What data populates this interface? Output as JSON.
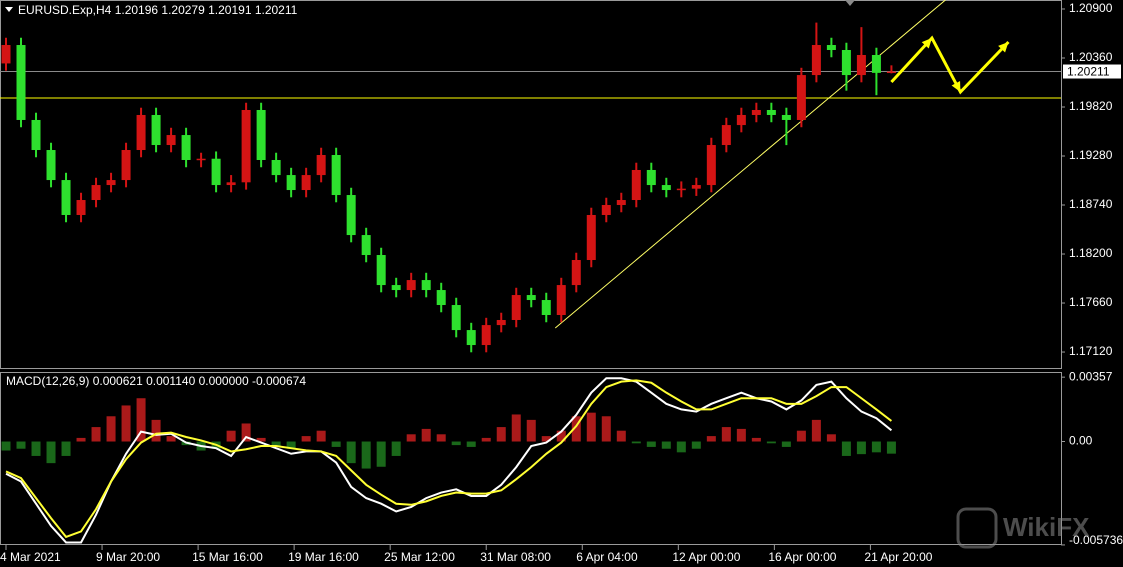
{
  "chart_data": [
    {
      "type": "candlestick",
      "title": "EURUSD.Exp,H4  1.20196 1.20279 1.20191 1.20211",
      "up_color": "#d41414",
      "down_color": "#2ee02e",
      "xlim": [
        -0.4,
        70.3
      ],
      "xticks": [
        {
          "value": 0,
          "label": "4 Mar 2021"
        },
        {
          "value": 6.4,
          "label": "9 Mar 20:00"
        },
        {
          "value": 12.8,
          "label": "15 Mar 16:00"
        },
        {
          "value": 19.2,
          "label": "19 Mar 16:00"
        },
        {
          "value": 25.6,
          "label": "25 Mar 12:00"
        },
        {
          "value": 32,
          "label": "31 Mar 08:00"
        },
        {
          "value": 38.4,
          "label": "6 Apr 04:00"
        },
        {
          "value": 44.8,
          "label": "12 Apr 00:00"
        },
        {
          "value": 51.2,
          "label": "16 Apr 00:00"
        },
        {
          "value": 57.6,
          "label": "21 Apr 20:00"
        }
      ],
      "ylim": [
        1.16944,
        1.20999
      ],
      "yticks": [
        {
          "value": 1.209,
          "label": "1.20900"
        },
        {
          "value": 1.2036,
          "label": "1.20360"
        },
        {
          "value": 1.1982,
          "label": "1.19820"
        },
        {
          "value": 1.1928,
          "label": "1.19280"
        },
        {
          "value": 1.1874,
          "label": "1.18740"
        },
        {
          "value": 1.182,
          "label": "1.18200"
        },
        {
          "value": 1.1766,
          "label": "1.17660"
        },
        {
          "value": 1.1712,
          "label": "1.17120"
        }
      ],
      "current_price": 1.20211,
      "hlines": [
        {
          "value": 1.19919,
          "color": "#ffff00"
        },
        {
          "value": 1.20211,
          "color": "#8a8a8a"
        }
      ],
      "trendline": {
        "x": [
          36.6,
          62.6
        ],
        "y": [
          1.17385,
          1.20999
        ],
        "color": "#ffff66"
      },
      "forecast": {
        "x": [
          59.0,
          61.7,
          63.6,
          66.8
        ],
        "y": [
          1.20095,
          1.2058,
          1.19985,
          1.20536
        ],
        "color": "#ffff00"
      },
      "candles": [
        [
          1.203,
          1.20583,
          1.2022,
          1.20503
        ],
        [
          1.20503,
          1.20583,
          1.19597,
          1.19677
        ],
        [
          1.19677,
          1.19757,
          1.19266,
          1.19346
        ],
        [
          1.19346,
          1.19426,
          1.18935,
          1.19015
        ],
        [
          1.19015,
          1.19095,
          1.1855,
          1.1863
        ],
        [
          1.1863,
          1.18875,
          1.1855,
          1.18795
        ],
        [
          1.18795,
          1.1904,
          1.18715,
          1.1896
        ],
        [
          1.1896,
          1.19095,
          1.1888,
          1.19015
        ],
        [
          1.19015,
          1.19426,
          1.18935,
          1.19346
        ],
        [
          1.19346,
          1.19812,
          1.19266,
          1.19732
        ],
        [
          1.19732,
          1.19812,
          1.19321,
          1.19401
        ],
        [
          1.19401,
          1.19591,
          1.19321,
          1.19511
        ],
        [
          1.19511,
          1.19591,
          1.19156,
          1.19236
        ],
        [
          1.19236,
          1.19316,
          1.19156,
          1.1925
        ],
        [
          1.1925,
          1.1933,
          1.1888,
          1.1896
        ],
        [
          1.1896,
          1.1907,
          1.1888,
          1.1899
        ],
        [
          1.1899,
          1.19867,
          1.1891,
          1.19787
        ],
        [
          1.19787,
          1.19867,
          1.19156,
          1.19236
        ],
        [
          1.19236,
          1.19316,
          1.1899,
          1.1907
        ],
        [
          1.1907,
          1.1915,
          1.18825,
          1.18905
        ],
        [
          1.18905,
          1.1915,
          1.18825,
          1.1907
        ],
        [
          1.1907,
          1.19371,
          1.1899,
          1.19291
        ],
        [
          1.19291,
          1.19371,
          1.1877,
          1.1885
        ],
        [
          1.1885,
          1.1893,
          1.18329,
          1.18409
        ],
        [
          1.18409,
          1.18489,
          1.18109,
          1.18189
        ],
        [
          1.18189,
          1.18269,
          1.17778,
          1.17858
        ],
        [
          1.17858,
          1.17938,
          1.17723,
          1.17803
        ],
        [
          1.17803,
          1.17993,
          1.17723,
          1.17913
        ],
        [
          1.17913,
          1.17993,
          1.17723,
          1.17803
        ],
        [
          1.17803,
          1.17883,
          1.17558,
          1.17638
        ],
        [
          1.17638,
          1.17718,
          1.17282,
          1.17362
        ],
        [
          1.17362,
          1.17442,
          1.17117,
          1.17197
        ],
        [
          1.17197,
          1.17497,
          1.17117,
          1.17417
        ],
        [
          1.17417,
          1.17553,
          1.17337,
          1.17473
        ],
        [
          1.17473,
          1.17828,
          1.17393,
          1.17748
        ],
        [
          1.17748,
          1.17828,
          1.17613,
          1.17693
        ],
        [
          1.17693,
          1.17773,
          1.17448,
          1.17528
        ],
        [
          1.17528,
          1.17938,
          1.17448,
          1.17858
        ],
        [
          1.17858,
          1.18214,
          1.17778,
          1.18134
        ],
        [
          1.18134,
          1.1871,
          1.18054,
          1.1863
        ],
        [
          1.1863,
          1.1882,
          1.1855,
          1.1874
        ],
        [
          1.1874,
          1.18875,
          1.1866,
          1.18795
        ],
        [
          1.18795,
          1.19206,
          1.18715,
          1.19126
        ],
        [
          1.19126,
          1.19206,
          1.1888,
          1.1896
        ],
        [
          1.1896,
          1.1904,
          1.18825,
          1.18905
        ],
        [
          1.18905,
          1.19,
          1.18825,
          1.1892
        ],
        [
          1.1892,
          1.1904,
          1.1884,
          1.1896
        ],
        [
          1.1896,
          1.19481,
          1.1888,
          1.19401
        ],
        [
          1.19401,
          1.19701,
          1.19321,
          1.19621
        ],
        [
          1.19621,
          1.19812,
          1.19541,
          1.19732
        ],
        [
          1.19732,
          1.19867,
          1.19652,
          1.19787
        ],
        [
          1.19787,
          1.19867,
          1.19652,
          1.19732
        ],
        [
          1.19732,
          1.19812,
          1.194,
          1.19677
        ],
        [
          1.19677,
          1.20252,
          1.19597,
          1.20172
        ],
        [
          1.20172,
          1.2075,
          1.20092,
          1.20503
        ],
        [
          1.20503,
          1.20583,
          1.20368,
          1.20448
        ],
        [
          1.20448,
          1.20528,
          1.2,
          1.20172
        ],
        [
          1.20172,
          1.207,
          1.20092,
          1.20393
        ],
        [
          1.20393,
          1.20473,
          1.1995,
          1.20196
        ],
        [
          1.20196,
          1.20279,
          1.20191,
          1.20211
        ]
      ],
      "watermark": "WikiFX"
    },
    {
      "type": "macd",
      "title": "MACD(12,26,9) 0.000621 0.001140 0.000000 -0.000674",
      "ylim": [
        -0.00574,
        0.0038
      ],
      "yticks": [
        0.00357,
        {
          "value": 0,
          "label": "0.00"
        },
        -0.005736
      ],
      "histogram": {
        "up_color": "#c81e1e",
        "down_color": "#1e7a1e",
        "values": [
          -0.0005,
          -0.0004,
          -0.0008,
          -0.0012,
          -0.0008,
          0.0002,
          0.0008,
          0.0014,
          0.002,
          0.0024,
          0.0012,
          0.0003,
          -0.0002,
          -0.0005,
          -0.0004,
          0.0006,
          0.001,
          0.0002,
          -0.0003,
          -0.0004,
          0.0003,
          0.0006,
          -0.0003,
          -0.0012,
          -0.0015,
          -0.0014,
          -0.0008,
          0.0004,
          0.0007,
          0.0004,
          -0.0002,
          -0.0003,
          0.0002,
          0.0008,
          0.0015,
          0.0012,
          0.0003,
          0.0006,
          0.0014,
          0.0016,
          0.0014,
          0.0006,
          -0.0001,
          -0.0003,
          -0.0004,
          -0.0006,
          -0.0004,
          0.0003,
          0.0008,
          0.0007,
          0.0002,
          -0.0001,
          -0.0003,
          0.0006,
          0.0012,
          0.0004,
          -0.0008,
          -0.0007,
          -0.0006,
          -0.000674
        ]
      },
      "series": [
        {
          "color": "#ffffff",
          "values": [
            -0.00179,
            -0.00222,
            -0.00345,
            -0.00468,
            -0.0056,
            -0.0056,
            -0.00406,
            -0.00222,
            -0.00068,
            0.00055,
            0.00037,
            0.00043,
            -6e-05,
            -0.00025,
            -0.00037,
            -0.0008,
            0.00025,
            -6e-05,
            -0.00037,
            -0.00068,
            -0.00055,
            -0.00055,
            -0.00117,
            -0.00252,
            -0.00314,
            -0.00345,
            -0.00388,
            -0.00363,
            -0.00314,
            -0.00283,
            -0.00265,
            -0.00302,
            -0.00302,
            -0.0024,
            -0.00142,
            -0.00025,
            -6e-05,
            0.00055,
            0.00148,
            0.00271,
            0.00351,
            0.00351,
            0.00332,
            0.00271,
            0.00209,
            0.00178,
            0.00166,
            0.00209,
            0.0024,
            0.00271,
            0.0024,
            0.00222,
            0.00178,
            0.00228,
            0.00314,
            0.00332,
            0.0024,
            0.00166,
            0.00129,
            0.000621
          ]
        },
        {
          "color": "#ffff33",
          "values": [
            -0.00166,
            -0.00203,
            -0.00314,
            -0.00425,
            -0.00529,
            -0.00499,
            -0.00375,
            -0.00222,
            -0.00098,
            -6e-05,
            0.00043,
            0.00049,
            0.00025,
            6e-05,
            -0.00018,
            -0.00055,
            -0.00043,
            -0.00025,
            -0.00025,
            -0.00037,
            -0.00049,
            -0.00055,
            -0.0008,
            -0.0016,
            -0.0024,
            -0.00295,
            -0.00345,
            -0.00351,
            -0.00332,
            -0.00302,
            -0.00283,
            -0.00289,
            -0.00289,
            -0.00271,
            -0.00209,
            -0.00142,
            -0.00068,
            -6e-05,
            0.00086,
            0.00209,
            0.00302,
            0.00332,
            0.00339,
            0.00326,
            0.00271,
            0.00222,
            0.00178,
            0.00178,
            0.00209,
            0.0024,
            0.0024,
            0.0024,
            0.00209,
            0.00209,
            0.00252,
            0.00302,
            0.00302,
            0.0024,
            0.00178,
            0.00114
          ]
        }
      ]
    }
  ]
}
